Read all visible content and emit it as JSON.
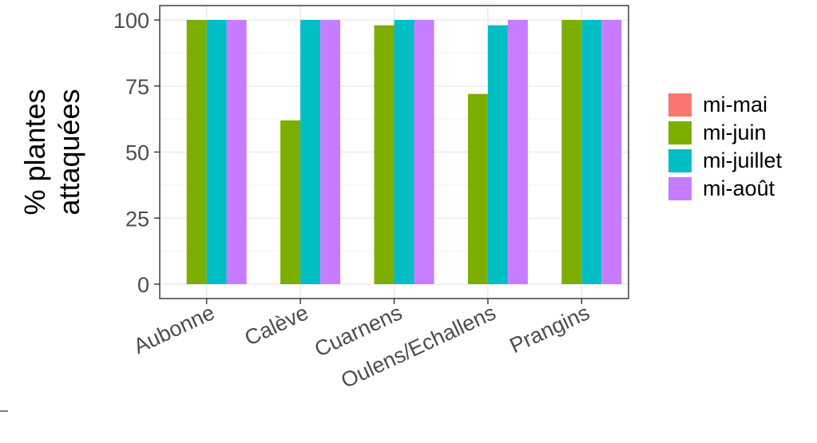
{
  "chart_data": {
    "type": "bar",
    "ylabel": [
      "% plantes",
      "attaquées"
    ],
    "xlabel": "",
    "ylim": [
      0,
      100
    ],
    "yticks": [
      "0",
      "25",
      "50",
      "75",
      "100"
    ],
    "categories": [
      "Aubonne",
      "Calève",
      "Cuarnens",
      "Oulens/Echallens",
      "Prangins"
    ],
    "series": [
      {
        "name": "mi-mai",
        "color": "#F8766D",
        "values": [
          0,
          0,
          0,
          0,
          0
        ]
      },
      {
        "name": "mi-juin",
        "color": "#7CAE00",
        "values": [
          100,
          62,
          98,
          72,
          100
        ]
      },
      {
        "name": "mi-juillet",
        "color": "#00BFC4",
        "values": [
          100,
          100,
          100,
          98,
          100
        ]
      },
      {
        "name": "mi-août",
        "color": "#C77CFF",
        "values": [
          100,
          100,
          100,
          100,
          100
        ]
      }
    ],
    "grid": true,
    "legend": "right"
  }
}
